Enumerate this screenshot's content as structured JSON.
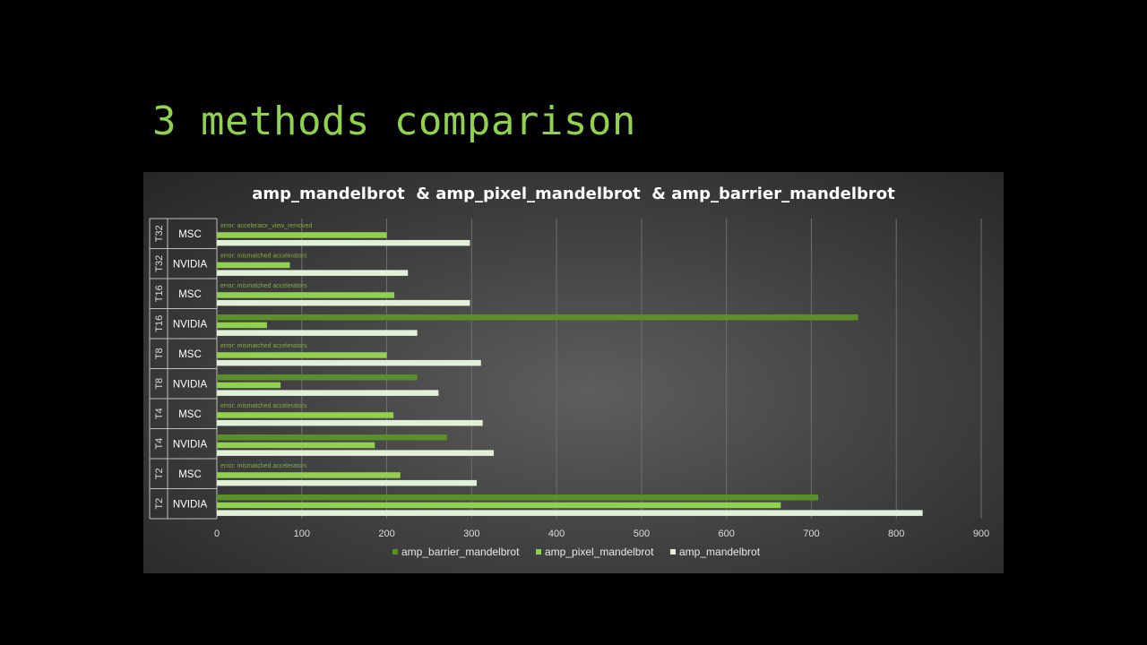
{
  "slide": {
    "title": "3 methods comparison"
  },
  "chart_data": {
    "type": "bar",
    "orientation": "horizontal",
    "title": "amp_mandelbrot  & amp_pixel_mandelbrot  & amp_barrier_mandelbrot",
    "xlim": [
      0,
      900
    ],
    "x_ticks": [
      0,
      100,
      200,
      300,
      400,
      500,
      600,
      700,
      800,
      900
    ],
    "grid": true,
    "legend_position": "bottom",
    "categories": [
      {
        "group": "T32",
        "label": "MSC"
      },
      {
        "group": "T32",
        "label": "NVIDIA"
      },
      {
        "group": "T16",
        "label": "MSC"
      },
      {
        "group": "T16",
        "label": "NVIDIA"
      },
      {
        "group": "T8",
        "label": "MSC"
      },
      {
        "group": "T8",
        "label": "NVIDIA"
      },
      {
        "group": "T4",
        "label": "MSC"
      },
      {
        "group": "T4",
        "label": "NVIDIA"
      },
      {
        "group": "T2",
        "label": "MSC"
      },
      {
        "group": "T2",
        "label": "NVIDIA"
      }
    ],
    "series": [
      {
        "name": "amp_barrier_mandelbrot",
        "color": "#5b8f2a",
        "values": [
          null,
          null,
          null,
          755,
          null,
          236,
          null,
          271,
          null,
          708
        ]
      },
      {
        "name": "amp_pixel_mandelbrot",
        "color": "#92d050",
        "values": [
          200,
          86,
          209,
          59,
          200,
          75,
          208,
          186,
          216,
          664
        ]
      },
      {
        "name": "amp_mandelbrot",
        "color": "#e2f0d9",
        "values": [
          298,
          225,
          298,
          236,
          311,
          261,
          313,
          326,
          306,
          831
        ]
      }
    ],
    "annotations": [
      "error: accelerator_view_removed",
      "error: mismatched accelerators",
      "error: mismatched accelerators",
      null,
      "error: mismatched accelerators",
      null,
      "error: mismatched accelerators",
      null,
      "error: mismatched accelerators",
      null
    ]
  }
}
